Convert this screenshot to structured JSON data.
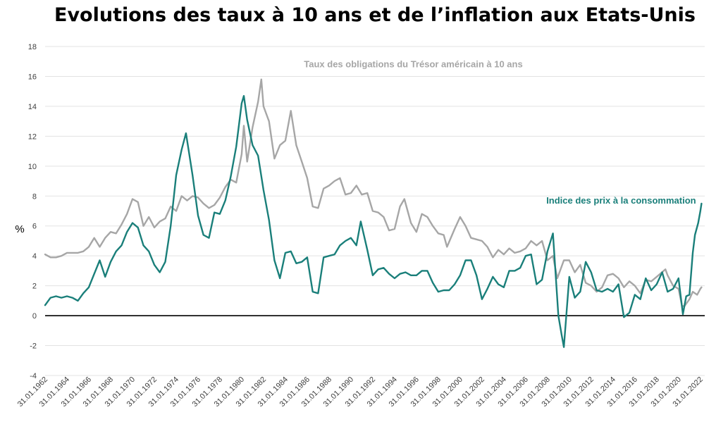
{
  "chart_data": {
    "type": "line",
    "title": "Evolutions des taux à 10 ans et de l’inflation aux Etats-Unis",
    "xlabel": "",
    "ylabel": "%",
    "ylim": [
      -4,
      18
    ],
    "yticks": [
      -4,
      -2,
      0,
      2,
      4,
      6,
      8,
      10,
      12,
      14,
      16,
      18
    ],
    "xlim": [
      1962.0,
      2022.4
    ],
    "xticks": [
      {
        "year": 1962,
        "label": "31.01.1962"
      },
      {
        "year": 1964,
        "label": "31.01.1964"
      },
      {
        "year": 1966,
        "label": "31.01.1966"
      },
      {
        "year": 1968,
        "label": "31.01.1968"
      },
      {
        "year": 1970,
        "label": "31.01.1970"
      },
      {
        "year": 1972,
        "label": "31.01.1972"
      },
      {
        "year": 1974,
        "label": "31.01.1974"
      },
      {
        "year": 1976,
        "label": "31.01.1976"
      },
      {
        "year": 1978,
        "label": "31.01.1978"
      },
      {
        "year": 1980,
        "label": "31.01.1980"
      },
      {
        "year": 1982,
        "label": "31.01.1982"
      },
      {
        "year": 1984,
        "label": "31.01.1984"
      },
      {
        "year": 1986,
        "label": "31.01.1986"
      },
      {
        "year": 1988,
        "label": "31.01.1988"
      },
      {
        "year": 1990,
        "label": "31.01.1990"
      },
      {
        "year": 1992,
        "label": "31.01.1992"
      },
      {
        "year": 1994,
        "label": "31.01.1994"
      },
      {
        "year": 1996,
        "label": "31.01.1996"
      },
      {
        "year": 1998,
        "label": "31.01.1998"
      },
      {
        "year": 2000,
        "label": "31.01.2000"
      },
      {
        "year": 2002,
        "label": "31.01.2002"
      },
      {
        "year": 2004,
        "label": "31.01.2004"
      },
      {
        "year": 2006,
        "label": "31.01.2006"
      },
      {
        "year": 2008,
        "label": "31.01.2008"
      },
      {
        "year": 2010,
        "label": "31.01.2010"
      },
      {
        "year": 2012,
        "label": "31.01.2012"
      },
      {
        "year": 2014,
        "label": "31.01.2014"
      },
      {
        "year": 2016,
        "label": "31.01.2016"
      },
      {
        "year": 2018,
        "label": "31.01.2018"
      },
      {
        "year": 2020,
        "label": "31.01.2020"
      },
      {
        "year": 2022,
        "label": "31.01.2022"
      }
    ],
    "grid": "horizontal",
    "zero_line": true,
    "series": [
      {
        "name": "Taux des obligations du Trésor américain à 10 ans",
        "color": "#a6a6a6",
        "points": [
          [
            1962.0,
            4.1
          ],
          [
            1962.5,
            3.9
          ],
          [
            1963.0,
            3.9
          ],
          [
            1963.5,
            4.0
          ],
          [
            1964.0,
            4.2
          ],
          [
            1964.5,
            4.2
          ],
          [
            1965.0,
            4.2
          ],
          [
            1965.5,
            4.3
          ],
          [
            1966.0,
            4.6
          ],
          [
            1966.5,
            5.2
          ],
          [
            1967.0,
            4.6
          ],
          [
            1967.5,
            5.2
          ],
          [
            1968.0,
            5.6
          ],
          [
            1968.5,
            5.5
          ],
          [
            1969.0,
            6.1
          ],
          [
            1969.5,
            6.8
          ],
          [
            1970.0,
            7.8
          ],
          [
            1970.5,
            7.6
          ],
          [
            1971.0,
            6.0
          ],
          [
            1971.5,
            6.6
          ],
          [
            1972.0,
            5.9
          ],
          [
            1972.5,
            6.3
          ],
          [
            1973.0,
            6.5
          ],
          [
            1973.5,
            7.3
          ],
          [
            1974.0,
            7.0
          ],
          [
            1974.5,
            8.0
          ],
          [
            1975.0,
            7.7
          ],
          [
            1975.5,
            8.0
          ],
          [
            1976.0,
            7.9
          ],
          [
            1976.5,
            7.5
          ],
          [
            1977.0,
            7.2
          ],
          [
            1977.5,
            7.4
          ],
          [
            1978.0,
            7.9
          ],
          [
            1978.5,
            8.6
          ],
          [
            1979.0,
            9.1
          ],
          [
            1979.5,
            8.9
          ],
          [
            1980.0,
            10.8
          ],
          [
            1980.2,
            12.7
          ],
          [
            1980.5,
            10.3
          ],
          [
            1981.0,
            12.6
          ],
          [
            1981.5,
            14.3
          ],
          [
            1981.8,
            15.8
          ],
          [
            1982.0,
            14.0
          ],
          [
            1982.5,
            13.0
          ],
          [
            1983.0,
            10.5
          ],
          [
            1983.5,
            11.4
          ],
          [
            1984.0,
            11.7
          ],
          [
            1984.5,
            13.7
          ],
          [
            1985.0,
            11.4
          ],
          [
            1985.5,
            10.3
          ],
          [
            1986.0,
            9.2
          ],
          [
            1986.5,
            7.3
          ],
          [
            1987.0,
            7.2
          ],
          [
            1987.5,
            8.5
          ],
          [
            1988.0,
            8.7
          ],
          [
            1988.5,
            9.0
          ],
          [
            1989.0,
            9.2
          ],
          [
            1989.5,
            8.1
          ],
          [
            1990.0,
            8.2
          ],
          [
            1990.5,
            8.7
          ],
          [
            1991.0,
            8.1
          ],
          [
            1991.5,
            8.2
          ],
          [
            1992.0,
            7.0
          ],
          [
            1992.5,
            6.9
          ],
          [
            1993.0,
            6.6
          ],
          [
            1993.5,
            5.7
          ],
          [
            1994.0,
            5.8
          ],
          [
            1994.5,
            7.3
          ],
          [
            1994.9,
            7.8
          ],
          [
            1995.5,
            6.2
          ],
          [
            1996.0,
            5.6
          ],
          [
            1996.5,
            6.8
          ],
          [
            1997.0,
            6.6
          ],
          [
            1997.5,
            6.0
          ],
          [
            1998.0,
            5.5
          ],
          [
            1998.5,
            5.4
          ],
          [
            1998.8,
            4.6
          ],
          [
            1999.5,
            5.8
          ],
          [
            2000.0,
            6.6
          ],
          [
            2000.5,
            6.0
          ],
          [
            2001.0,
            5.2
          ],
          [
            2001.5,
            5.1
          ],
          [
            2002.0,
            5.0
          ],
          [
            2002.5,
            4.6
          ],
          [
            2003.0,
            3.9
          ],
          [
            2003.5,
            4.4
          ],
          [
            2004.0,
            4.1
          ],
          [
            2004.5,
            4.5
          ],
          [
            2005.0,
            4.2
          ],
          [
            2005.5,
            4.3
          ],
          [
            2006.0,
            4.5
          ],
          [
            2006.5,
            5.0
          ],
          [
            2007.0,
            4.7
          ],
          [
            2007.5,
            5.0
          ],
          [
            2008.0,
            3.7
          ],
          [
            2008.5,
            4.0
          ],
          [
            2008.9,
            2.5
          ],
          [
            2009.5,
            3.7
          ],
          [
            2010.0,
            3.7
          ],
          [
            2010.5,
            2.9
          ],
          [
            2011.0,
            3.4
          ],
          [
            2011.5,
            2.2
          ],
          [
            2012.0,
            2.0
          ],
          [
            2012.5,
            1.6
          ],
          [
            2013.0,
            1.9
          ],
          [
            2013.5,
            2.7
          ],
          [
            2014.0,
            2.8
          ],
          [
            2014.5,
            2.5
          ],
          [
            2015.0,
            1.9
          ],
          [
            2015.5,
            2.3
          ],
          [
            2016.0,
            2.0
          ],
          [
            2016.5,
            1.5
          ],
          [
            2017.0,
            2.4
          ],
          [
            2017.5,
            2.3
          ],
          [
            2018.0,
            2.6
          ],
          [
            2018.8,
            3.1
          ],
          [
            2019.0,
            2.7
          ],
          [
            2019.5,
            2.0
          ],
          [
            2020.0,
            1.8
          ],
          [
            2020.3,
            0.7
          ],
          [
            2020.5,
            0.6
          ],
          [
            2021.0,
            1.1
          ],
          [
            2021.3,
            1.6
          ],
          [
            2021.7,
            1.4
          ],
          [
            2022.0,
            1.8
          ],
          [
            2022.1,
            1.9
          ]
        ]
      },
      {
        "name": "Indice des prix à la consommation",
        "color": "#1a7f7a",
        "points": [
          [
            1962.0,
            0.7
          ],
          [
            1962.5,
            1.2
          ],
          [
            1963.0,
            1.3
          ],
          [
            1963.5,
            1.2
          ],
          [
            1964.0,
            1.3
          ],
          [
            1964.5,
            1.2
          ],
          [
            1965.0,
            1.0
          ],
          [
            1965.5,
            1.5
          ],
          [
            1966.0,
            1.9
          ],
          [
            1966.5,
            2.8
          ],
          [
            1967.0,
            3.7
          ],
          [
            1967.5,
            2.6
          ],
          [
            1968.0,
            3.6
          ],
          [
            1968.5,
            4.3
          ],
          [
            1969.0,
            4.7
          ],
          [
            1969.5,
            5.6
          ],
          [
            1970.0,
            6.2
          ],
          [
            1970.5,
            5.9
          ],
          [
            1971.0,
            4.7
          ],
          [
            1971.5,
            4.3
          ],
          [
            1972.0,
            3.4
          ],
          [
            1972.5,
            2.9
          ],
          [
            1973.0,
            3.6
          ],
          [
            1973.5,
            6.0
          ],
          [
            1974.0,
            9.4
          ],
          [
            1974.5,
            11.1
          ],
          [
            1974.9,
            12.2
          ],
          [
            1975.5,
            9.4
          ],
          [
            1976.0,
            6.7
          ],
          [
            1976.5,
            5.4
          ],
          [
            1977.0,
            5.2
          ],
          [
            1977.5,
            6.9
          ],
          [
            1978.0,
            6.8
          ],
          [
            1978.5,
            7.7
          ],
          [
            1979.0,
            9.3
          ],
          [
            1979.5,
            11.3
          ],
          [
            1980.0,
            14.2
          ],
          [
            1980.2,
            14.7
          ],
          [
            1980.5,
            13.1
          ],
          [
            1981.0,
            11.4
          ],
          [
            1981.5,
            10.7
          ],
          [
            1982.0,
            8.4
          ],
          [
            1982.5,
            6.4
          ],
          [
            1983.0,
            3.7
          ],
          [
            1983.5,
            2.5
          ],
          [
            1984.0,
            4.2
          ],
          [
            1984.5,
            4.3
          ],
          [
            1985.0,
            3.5
          ],
          [
            1985.5,
            3.6
          ],
          [
            1986.0,
            3.9
          ],
          [
            1986.5,
            1.6
          ],
          [
            1987.0,
            1.5
          ],
          [
            1987.5,
            3.9
          ],
          [
            1988.0,
            4.0
          ],
          [
            1988.5,
            4.1
          ],
          [
            1989.0,
            4.7
          ],
          [
            1989.5,
            5.0
          ],
          [
            1990.0,
            5.2
          ],
          [
            1990.5,
            4.7
          ],
          [
            1990.9,
            6.3
          ],
          [
            1991.5,
            4.4
          ],
          [
            1992.0,
            2.7
          ],
          [
            1992.5,
            3.1
          ],
          [
            1993.0,
            3.2
          ],
          [
            1993.5,
            2.8
          ],
          [
            1994.0,
            2.5
          ],
          [
            1994.5,
            2.8
          ],
          [
            1995.0,
            2.9
          ],
          [
            1995.5,
            2.7
          ],
          [
            1996.0,
            2.7
          ],
          [
            1996.5,
            3.0
          ],
          [
            1997.0,
            3.0
          ],
          [
            1997.5,
            2.2
          ],
          [
            1998.0,
            1.6
          ],
          [
            1998.5,
            1.7
          ],
          [
            1999.0,
            1.7
          ],
          [
            1999.5,
            2.1
          ],
          [
            2000.0,
            2.7
          ],
          [
            2000.5,
            3.7
          ],
          [
            2001.0,
            3.7
          ],
          [
            2001.5,
            2.7
          ],
          [
            2002.0,
            1.1
          ],
          [
            2002.5,
            1.8
          ],
          [
            2003.0,
            2.6
          ],
          [
            2003.5,
            2.1
          ],
          [
            2004.0,
            1.9
          ],
          [
            2004.5,
            3.0
          ],
          [
            2005.0,
            3.0
          ],
          [
            2005.5,
            3.2
          ],
          [
            2006.0,
            4.0
          ],
          [
            2006.5,
            4.1
          ],
          [
            2007.0,
            2.1
          ],
          [
            2007.5,
            2.4
          ],
          [
            2008.0,
            4.3
          ],
          [
            2008.5,
            5.5
          ],
          [
            2009.0,
            0.0
          ],
          [
            2009.3,
            -1.3
          ],
          [
            2009.5,
            -2.1
          ],
          [
            2010.0,
            2.6
          ],
          [
            2010.5,
            1.2
          ],
          [
            2011.0,
            1.6
          ],
          [
            2011.5,
            3.6
          ],
          [
            2012.0,
            2.9
          ],
          [
            2012.5,
            1.7
          ],
          [
            2013.0,
            1.6
          ],
          [
            2013.5,
            1.8
          ],
          [
            2014.0,
            1.6
          ],
          [
            2014.5,
            2.1
          ],
          [
            2015.0,
            -0.1
          ],
          [
            2015.5,
            0.2
          ],
          [
            2016.0,
            1.4
          ],
          [
            2016.5,
            1.1
          ],
          [
            2017.0,
            2.5
          ],
          [
            2017.5,
            1.7
          ],
          [
            2018.0,
            2.1
          ],
          [
            2018.5,
            2.9
          ],
          [
            2019.0,
            1.6
          ],
          [
            2019.5,
            1.8
          ],
          [
            2020.0,
            2.5
          ],
          [
            2020.4,
            0.1
          ],
          [
            2020.7,
            1.3
          ],
          [
            2021.0,
            1.4
          ],
          [
            2021.3,
            4.2
          ],
          [
            2021.5,
            5.4
          ],
          [
            2021.8,
            6.2
          ],
          [
            2022.0,
            7.0
          ],
          [
            2022.1,
            7.5
          ]
        ]
      }
    ],
    "annotations": [
      {
        "text": "Taux des obligations du Trésor américain à 10 ans",
        "x": 1985.7,
        "y": 16.6,
        "color": "#a6a6a6",
        "anchor": "start"
      },
      {
        "text": "Indice des prix à la consommation",
        "x": 2021.6,
        "y": 7.5,
        "color": "#1a7f7a",
        "anchor": "end"
      }
    ]
  }
}
